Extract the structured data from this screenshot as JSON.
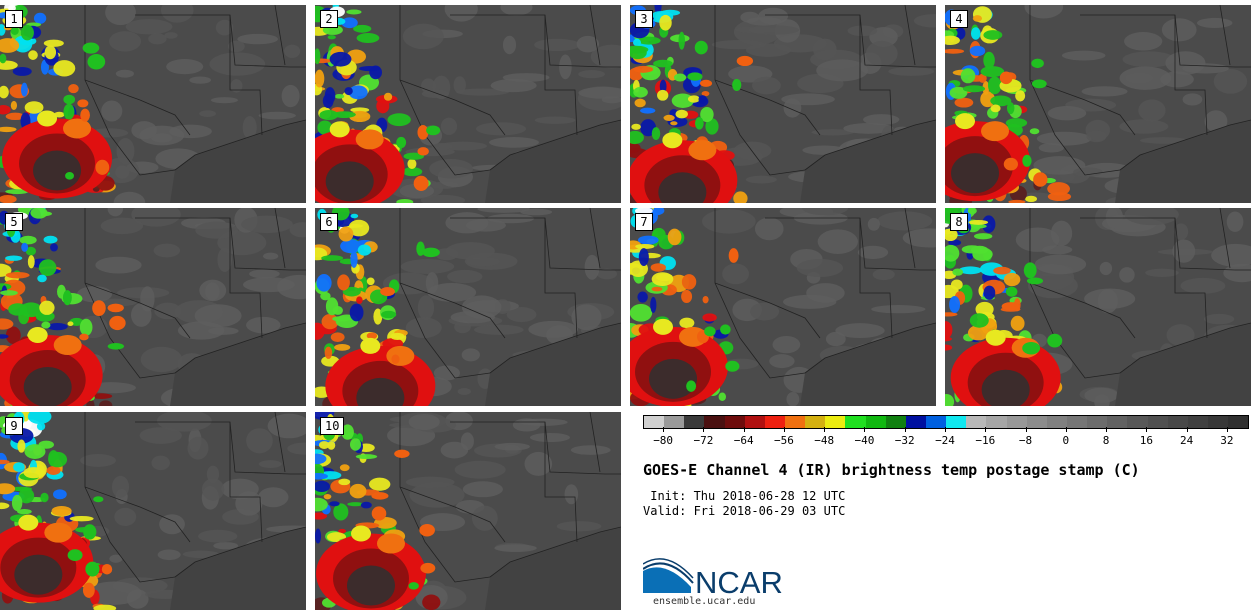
{
  "panels": [
    {
      "label": "1"
    },
    {
      "label": "2"
    },
    {
      "label": "3"
    },
    {
      "label": "4"
    },
    {
      "label": "5"
    },
    {
      "label": "6"
    },
    {
      "label": "7"
    },
    {
      "label": "8"
    },
    {
      "label": "9"
    },
    {
      "label": "10"
    }
  ],
  "colorbar": {
    "colors": [
      "#d0d0d0",
      "#9a9a9a",
      "#3a3a3a",
      "#4a1010",
      "#6e0c0c",
      "#b01010",
      "#ee2010",
      "#f07010",
      "#d4b010",
      "#ecec10",
      "#20e020",
      "#10b810",
      "#108010",
      "#0010a0",
      "#0060e0",
      "#10e8f0",
      "#b8b8b8",
      "#a6a6a6",
      "#989898",
      "#8c8c8c",
      "#808080",
      "#767676",
      "#6c6c6c",
      "#626262",
      "#585858",
      "#505050",
      "#484848",
      "#404040",
      "#383838",
      "#303030"
    ],
    "tick_labels": [
      "−80",
      "−72",
      "−64",
      "−56",
      "−48",
      "−40",
      "−32",
      "−24",
      "−16",
      "−8",
      "0",
      "8",
      "16",
      "24",
      "32"
    ]
  },
  "title": "GOES-E Channel 4 (IR) brightness temp postage stamp (C)",
  "init_line": " Init: Thu 2018-06-28 12 UTC",
  "valid_line": "Valid: Fri 2018-06-29 03 UTC",
  "logo": {
    "text": "NCAR",
    "url": "ensemble.ucar.edu"
  }
}
